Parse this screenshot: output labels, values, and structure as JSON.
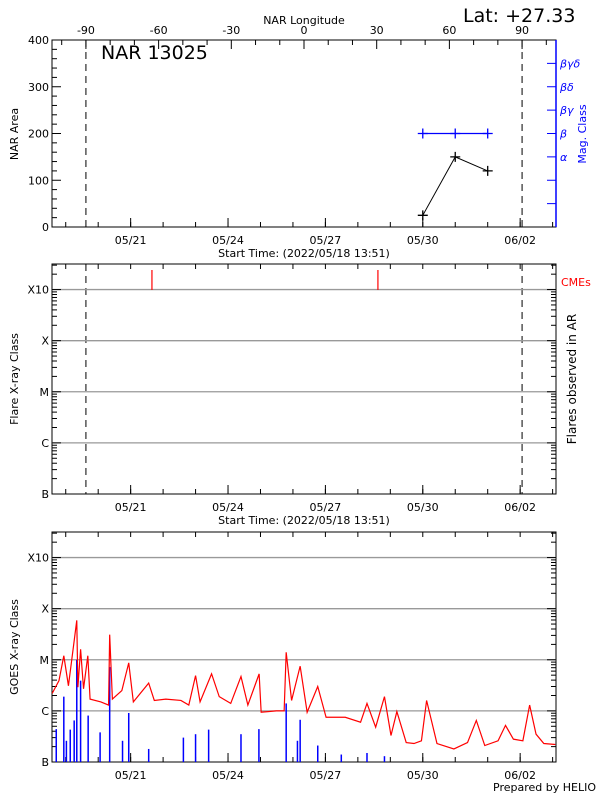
{
  "header": {
    "lat_label": "Lat: +27.33",
    "region_label": "NAR 13025",
    "footer": "Prepared by HELIO"
  },
  "colors": {
    "axis": "#000000",
    "mag_class": "#0000ff",
    "goes_flux": "#ff0000",
    "flares": "#0000ff",
    "cme": "#ff0000",
    "grid": "#999999"
  },
  "time_axis": {
    "start": "2022-05-18T13:51",
    "end": "2022-06-03T02:30",
    "start_label": "Start Time: (2022/05/18 13:51)",
    "ticks": [
      {
        "t": "2022-05-21T00:00",
        "label": "05/21"
      },
      {
        "t": "2022-05-24T00:00",
        "label": "05/24"
      },
      {
        "t": "2022-05-27T00:00",
        "label": "05/27"
      },
      {
        "t": "2022-05-30T00:00",
        "label": "05/30"
      },
      {
        "t": "2022-06-02T00:00",
        "label": "06/02"
      }
    ]
  },
  "chart_data": [
    {
      "type": "line",
      "title": "NAR 13025",
      "ylabel": "NAR Area",
      "ylim": [
        0,
        400
      ],
      "yticks": [
        "0",
        "100",
        "200",
        "300",
        "400"
      ],
      "top_axis": {
        "label": "NAR Longitude",
        "range": [
          -104,
          104
        ],
        "ticks": [
          "-90",
          "-60",
          "-30",
          "0",
          "30",
          "60",
          "90"
        ]
      },
      "limb_longitudes": [
        -90,
        90
      ],
      "series": [
        {
          "kind": "area",
          "points": [
            {
              "t": "2022-05-30T00:00",
              "y": 25
            },
            {
              "t": "2022-05-31T00:00",
              "y": 150
            },
            {
              "t": "2022-06-01T00:00",
              "y": 120
            }
          ]
        }
      ],
      "right_axis": {
        "label": "Mag. Class",
        "classes": [
          "α",
          "β",
          "βγ",
          "βδ",
          "βγδ"
        ],
        "class_levels": [
          150,
          200,
          250,
          300,
          350
        ],
        "tick_levels": [
          50,
          100,
          150,
          200,
          250,
          300,
          350
        ]
      },
      "mag_class_points": [
        {
          "t": "2022-05-30T00:00",
          "class": "β"
        },
        {
          "t": "2022-05-31T00:00",
          "class": "β"
        },
        {
          "t": "2022-06-01T00:00",
          "class": "β"
        }
      ]
    },
    {
      "type": "scatter",
      "ylabel": "Flare X-ray Class",
      "right_label": "Flares observed in AR",
      "yscale": "log",
      "ylim": [
        1e-07,
        0.00316
      ],
      "yticks": [
        {
          "v": 1e-07,
          "label": "B"
        },
        {
          "v": 1e-06,
          "label": "C"
        },
        {
          "v": 1e-05,
          "label": "M"
        },
        {
          "v": 0.0001,
          "label": "X"
        },
        {
          "v": 0.001,
          "label": "X10"
        }
      ],
      "grid": true,
      "limb_longitudes": [
        -90,
        90
      ],
      "flares": [],
      "cme_label": "CMEs",
      "cmes": [
        "2022-05-21T15:45",
        "2022-05-28T14:50"
      ]
    },
    {
      "type": "line",
      "ylabel": "GOES X-ray Class",
      "yscale": "log",
      "ylim": [
        1e-07,
        0.00316
      ],
      "yticks": [
        {
          "v": 1e-07,
          "label": "B"
        },
        {
          "v": 1e-06,
          "label": "C"
        },
        {
          "v": 1e-05,
          "label": "M"
        },
        {
          "v": 0.0001,
          "label": "X"
        },
        {
          "v": 0.001,
          "label": "X10"
        }
      ],
      "grid": true,
      "goes_flux": [
        [
          "2022-05-18T14:00",
          2.2e-06
        ],
        [
          "2022-05-18T19:00",
          3.9e-06
        ],
        [
          "2022-05-18T22:35",
          1.2e-05
        ],
        [
          "2022-05-19T02:00",
          3.1e-06
        ],
        [
          "2022-05-19T08:10",
          5.9e-05
        ],
        [
          "2022-05-19T09:00",
          2.9e-06
        ],
        [
          "2022-05-19T11:00",
          1.6e-05
        ],
        [
          "2022-05-19T13:10",
          2.7e-06
        ],
        [
          "2022-05-19T16:20",
          1.2e-05
        ],
        [
          "2022-05-19T18:00",
          1.7e-06
        ],
        [
          "2022-05-20T02:00",
          1.5e-06
        ],
        [
          "2022-05-20T07:40",
          1.3e-06
        ],
        [
          "2022-05-20T08:30",
          3.1e-05
        ],
        [
          "2022-05-20T10:30",
          1.7e-06
        ],
        [
          "2022-05-20T17:30",
          2.5e-06
        ],
        [
          "2022-05-20T22:35",
          8.7e-06
        ],
        [
          "2022-05-21T02:00",
          1.5e-06
        ],
        [
          "2022-05-21T13:20",
          3.5e-06
        ],
        [
          "2022-05-21T17:30",
          1.6e-06
        ],
        [
          "2022-05-22T02:00",
          1.7e-06
        ],
        [
          "2022-05-22T13:10",
          1.6e-06
        ],
        [
          "2022-05-22T19:00",
          1.3e-06
        ],
        [
          "2022-05-23T00:00",
          4.9e-06
        ],
        [
          "2022-05-23T03:20",
          1.5e-06
        ],
        [
          "2022-05-23T11:50",
          5.3e-06
        ],
        [
          "2022-05-23T17:30",
          1.9e-06
        ],
        [
          "2022-05-24T02:00",
          1.4e-06
        ],
        [
          "2022-05-24T09:35",
          4.7e-06
        ],
        [
          "2022-05-24T14:40",
          1.3e-06
        ],
        [
          "2022-05-24T23:00",
          5.3e-06
        ],
        [
          "2022-05-25T00:30",
          9.4e-07
        ],
        [
          "2022-05-25T11:45",
          1e-06
        ],
        [
          "2022-05-25T17:30",
          1e-06
        ],
        [
          "2022-05-25T19:00",
          1.4e-05
        ],
        [
          "2022-05-25T23:00",
          1.6e-06
        ],
        [
          "2022-05-26T05:20",
          7.5e-06
        ],
        [
          "2022-05-26T10:30",
          9.4e-07
        ],
        [
          "2022-05-26T18:20",
          3e-06
        ],
        [
          "2022-05-27T00:30",
          7.5e-07
        ],
        [
          "2022-05-27T14:40",
          7.5e-07
        ],
        [
          "2022-05-28T02:00",
          6e-07
        ],
        [
          "2022-05-28T06:45",
          1.4e-06
        ],
        [
          "2022-05-28T13:10",
          4.8e-07
        ],
        [
          "2022-05-28T19:40",
          1.9e-06
        ],
        [
          "2022-05-29T00:30",
          3.3e-07
        ],
        [
          "2022-05-29T04:50",
          9.7e-07
        ],
        [
          "2022-05-29T11:45",
          2.4e-07
        ],
        [
          "2022-05-29T17:30",
          2.3e-07
        ],
        [
          "2022-05-29T23:00",
          2.6e-07
        ],
        [
          "2022-05-30T02:50",
          1.6e-06
        ],
        [
          "2022-05-30T10:30",
          2.3e-07
        ],
        [
          "2022-05-30T23:00",
          1.8e-07
        ],
        [
          "2022-05-31T09:05",
          2.4e-07
        ],
        [
          "2022-05-31T15:35",
          6.5e-07
        ],
        [
          "2022-05-31T21:50",
          2.1e-07
        ],
        [
          "2022-06-01T07:40",
          2.6e-07
        ],
        [
          "2022-06-01T13:10",
          5.2e-07
        ],
        [
          "2022-06-01T19:00",
          2.8e-07
        ],
        [
          "2022-06-02T02:00",
          2.6e-07
        ],
        [
          "2022-06-02T07:00",
          1.3e-06
        ],
        [
          "2022-06-02T11:45",
          3.5e-07
        ],
        [
          "2022-06-02T17:30",
          2.3e-07
        ],
        [
          "2022-06-03T02:00",
          2.2e-07
        ]
      ],
      "flare_bars": [
        [
          "2022-05-18T17:00",
          4.4e-07
        ],
        [
          "2022-05-18T22:35",
          1.9e-06
        ],
        [
          "2022-05-19T00:30",
          2.6e-07
        ],
        [
          "2022-05-19T03:20",
          4.3e-07
        ],
        [
          "2022-05-19T06:15",
          6.5e-07
        ],
        [
          "2022-05-19T08:10",
          1e-05
        ],
        [
          "2022-05-19T11:00",
          3.9e-06
        ],
        [
          "2022-05-19T16:35",
          8.1e-07
        ],
        [
          "2022-05-20T01:25",
          3.8e-07
        ],
        [
          "2022-05-20T08:30",
          7.2e-06
        ],
        [
          "2022-05-20T18:00",
          2.6e-07
        ],
        [
          "2022-05-20T22:35",
          9.1e-07
        ],
        [
          "2022-05-21T13:20",
          1.8e-07
        ],
        [
          "2022-05-22T15:00",
          3e-07
        ],
        [
          "2022-05-23T00:00",
          3.5e-07
        ],
        [
          "2022-05-23T09:40",
          4.3e-07
        ],
        [
          "2022-05-24T09:35",
          3.5e-07
        ],
        [
          "2022-05-24T22:50",
          4.4e-07
        ],
        [
          "2022-05-25T19:00",
          1.4e-06
        ],
        [
          "2022-05-26T03:20",
          2.6e-07
        ],
        [
          "2022-05-26T05:20",
          6.7e-07
        ],
        [
          "2022-05-26T18:20",
          2.1e-07
        ],
        [
          "2022-05-27T11:45",
          1.4e-07
        ],
        [
          "2022-05-28T06:45",
          1.5e-07
        ],
        [
          "2022-05-28T19:40",
          1.3e-07
        ]
      ]
    }
  ]
}
